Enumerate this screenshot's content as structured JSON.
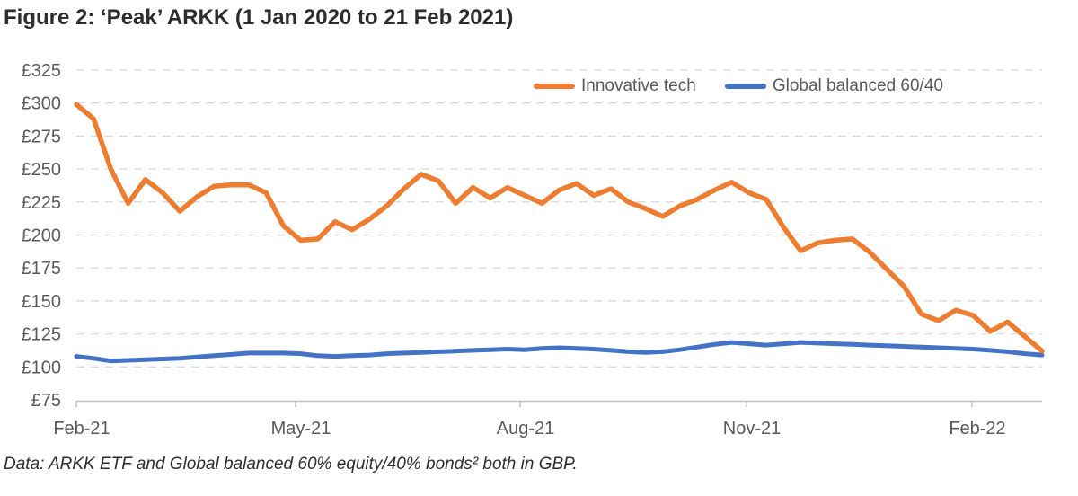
{
  "figure": {
    "title": "Figure 2: ‘Peak’ ARKK (1 Jan 2020 to 21 Feb 2021)",
    "footnote": "Data: ARKK ETF and Global balanced 60% equity/40% bonds² both in GBP."
  },
  "chart_data": {
    "type": "line",
    "title": "Figure 2: ‘Peak’ ARKK (1 Jan 2020 to 21 Feb 2021)",
    "xlabel": "",
    "ylabel": "",
    "currency": "£",
    "ylim": [
      75,
      325
    ],
    "y_tick_step": 25,
    "y_tick_labels": [
      "£75",
      "£100",
      "£125",
      "£150",
      "£175",
      "£200",
      "£225",
      "£250",
      "£275",
      "£300",
      "£325"
    ],
    "x_tick_labels": [
      "Feb-21",
      "May-21",
      "Aug-21",
      "Nov-21",
      "Feb-22"
    ],
    "x_unit": "weekly points from Feb-21 to early Mar-22",
    "grid": "horizontal dashed",
    "legend_position": "top inside",
    "series": [
      {
        "name": "Global balanced 60/40",
        "color": "#4472C4",
        "values": [
          108,
          106.5,
          104.5,
          105,
          105.5,
          106,
          106.5,
          107.5,
          108.5,
          109.5,
          110.5,
          110.5,
          110.5,
          110,
          108.5,
          108,
          108.5,
          109,
          110,
          110.5,
          111,
          111.5,
          112,
          112.5,
          113,
          113.5,
          113,
          114,
          114.5,
          114,
          113.5,
          112.5,
          111.5,
          111,
          111.5,
          113,
          115,
          117,
          118.5,
          117.5,
          116.5,
          117.5,
          118.5,
          118,
          117.5,
          117,
          116.5,
          116,
          115.5,
          115,
          114.5,
          114,
          113.5,
          112.5,
          111.5,
          110,
          109
        ]
      },
      {
        "name": "Innovative tech",
        "color": "#ED7D31",
        "values": [
          299,
          288,
          250,
          224,
          242,
          232,
          218,
          229,
          237,
          238,
          238,
          232,
          207,
          196,
          197,
          210,
          204,
          212,
          222,
          235,
          246,
          241,
          224,
          236,
          228,
          236,
          230,
          224,
          234,
          239,
          230,
          235,
          225,
          220,
          214,
          222,
          227,
          234,
          240,
          232,
          227,
          206,
          188,
          194,
          196,
          197,
          187,
          174,
          161,
          140,
          135,
          143,
          139,
          127,
          134,
          123,
          112
        ]
      }
    ],
    "legend_order": [
      "Innovative tech",
      "Global balanced 60/40"
    ]
  }
}
